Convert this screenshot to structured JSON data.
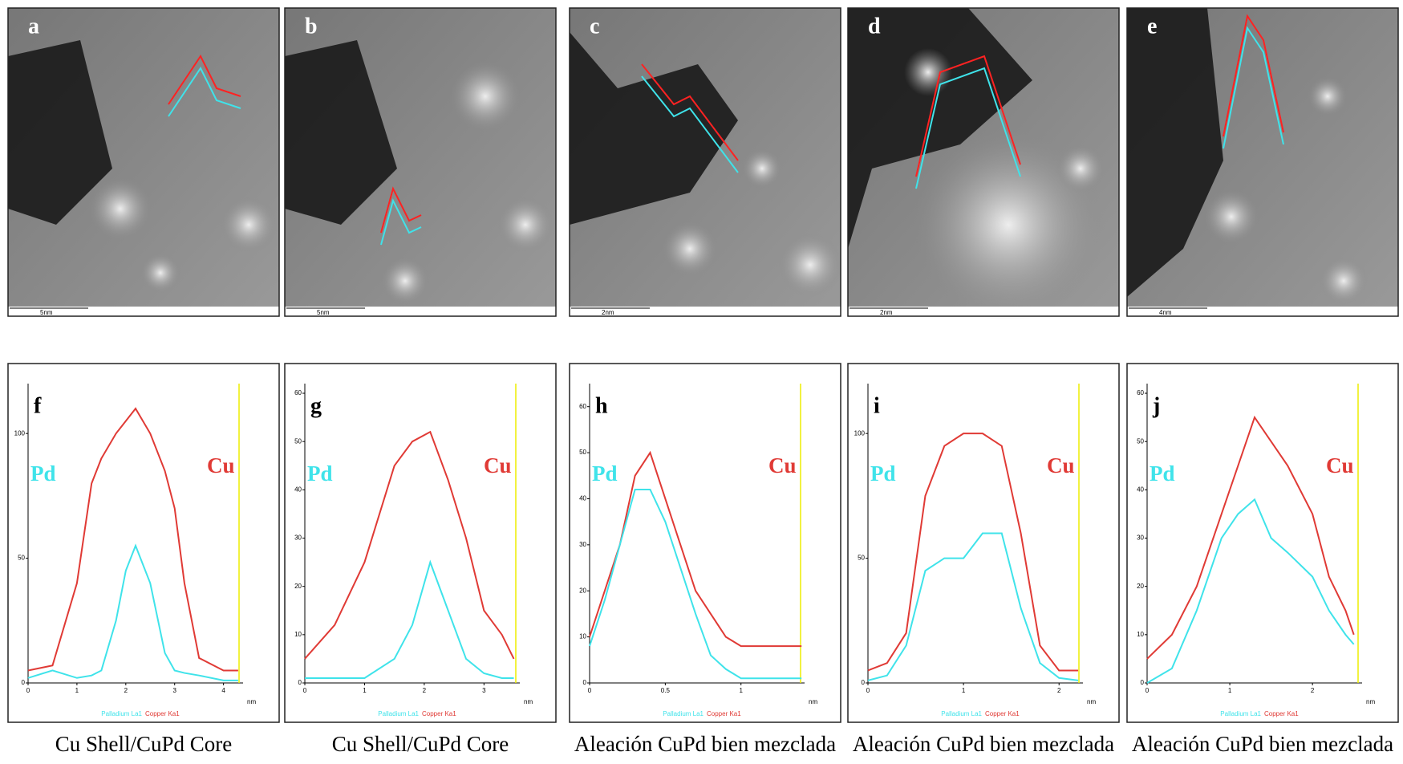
{
  "image_panels": [
    {
      "label": "a",
      "scale_bar": "5nm"
    },
    {
      "label": "b",
      "scale_bar": "5nm"
    },
    {
      "label": "c",
      "scale_bar": "2nm"
    },
    {
      "label": "d",
      "scale_bar": "2nm"
    },
    {
      "label": "e",
      "scale_bar": "4nm"
    }
  ],
  "chart_data": [
    {
      "type": "line",
      "label": "f",
      "caption": "Cu Shell/CuPd Core",
      "xlabel": "nm",
      "detector_labels": [
        "Palladium La1",
        "Copper Ka1"
      ],
      "x": [
        0,
        0.5,
        1,
        1.3,
        1.5,
        1.8,
        2,
        2.2,
        2.5,
        2.8,
        3,
        3.2,
        3.5,
        4,
        4.3
      ],
      "xlim": [
        0,
        4.4
      ],
      "xticks": [
        0,
        1,
        2,
        3,
        4
      ],
      "ylim": [
        0,
        120
      ],
      "yticks": [
        0,
        50,
        100
      ],
      "series": [
        {
          "name": "Pd",
          "color": "#3fe3ea",
          "values": [
            2,
            5,
            2,
            3,
            5,
            25,
            45,
            55,
            40,
            12,
            5,
            4,
            3,
            1,
            1
          ]
        },
        {
          "name": "Cu",
          "color": "#e03a35",
          "values": [
            5,
            7,
            40,
            80,
            90,
            100,
            105,
            110,
            100,
            85,
            70,
            40,
            10,
            5,
            5
          ]
        }
      ]
    },
    {
      "type": "line",
      "label": "g",
      "caption": "Cu Shell/CuPd Core",
      "xlabel": "nm",
      "detector_labels": [
        "Palladium La1",
        "Copper Ka1"
      ],
      "x": [
        0,
        0.5,
        1,
        1.5,
        1.8,
        2.1,
        2.4,
        2.7,
        3,
        3.3,
        3.5
      ],
      "xlim": [
        0,
        3.6
      ],
      "xticks": [
        0,
        1,
        2,
        3
      ],
      "ylim": [
        0,
        62
      ],
      "yticks": [
        0,
        10,
        20,
        30,
        40,
        50,
        60
      ],
      "series": [
        {
          "name": "Pd",
          "color": "#3fe3ea",
          "values": [
            1,
            1,
            1,
            5,
            12,
            25,
            15,
            5,
            2,
            1,
            1
          ]
        },
        {
          "name": "Cu",
          "color": "#e03a35",
          "values": [
            5,
            12,
            25,
            45,
            50,
            52,
            42,
            30,
            15,
            10,
            5
          ]
        }
      ]
    },
    {
      "type": "line",
      "label": "h",
      "caption": "Aleación CuPd bien mezclada",
      "xlabel": "nm",
      "detector_labels": [
        "Palladium La1",
        "Copper Ka1"
      ],
      "x": [
        0,
        0.1,
        0.2,
        0.3,
        0.4,
        0.5,
        0.6,
        0.7,
        0.8,
        0.9,
        1.0,
        1.2,
        1.4
      ],
      "xlim": [
        0,
        1.42
      ],
      "xticks": [
        0,
        0.5,
        1
      ],
      "ylim": [
        0,
        65
      ],
      "yticks": [
        0,
        10,
        20,
        30,
        40,
        50,
        60
      ],
      "series": [
        {
          "name": "Pd",
          "color": "#3fe3ea",
          "values": [
            8,
            18,
            30,
            42,
            42,
            35,
            25,
            15,
            6,
            3,
            1,
            1,
            1
          ]
        },
        {
          "name": "Cu",
          "color": "#e03a35",
          "values": [
            10,
            20,
            30,
            45,
            50,
            40,
            30,
            20,
            15,
            10,
            8,
            8,
            8
          ]
        }
      ]
    },
    {
      "type": "line",
      "label": "i",
      "caption": "Aleación CuPd bien mezclada",
      "xlabel": "nm",
      "detector_labels": [
        "Palladium La1",
        "Copper Ka1"
      ],
      "x": [
        0,
        0.2,
        0.4,
        0.6,
        0.8,
        1,
        1.2,
        1.4,
        1.6,
        1.8,
        2,
        2.2
      ],
      "xlim": [
        0,
        2.25
      ],
      "xticks": [
        0,
        1,
        2
      ],
      "ylim": [
        0,
        120
      ],
      "yticks": [
        0,
        50,
        100
      ],
      "series": [
        {
          "name": "Pd",
          "color": "#3fe3ea",
          "values": [
            1,
            3,
            15,
            45,
            50,
            50,
            60,
            60,
            30,
            8,
            2,
            1
          ]
        },
        {
          "name": "Cu",
          "color": "#e03a35",
          "values": [
            5,
            8,
            20,
            75,
            95,
            100,
            100,
            95,
            60,
            15,
            5,
            5
          ]
        }
      ]
    },
    {
      "type": "line",
      "label": "j",
      "caption": "Aleación CuPd bien mezclada",
      "xlabel": "nm",
      "detector_labels": [
        "Palladium La1",
        "Copper Ka1"
      ],
      "x": [
        0,
        0.3,
        0.6,
        0.9,
        1.1,
        1.3,
        1.5,
        1.7,
        2,
        2.2,
        2.4,
        2.5
      ],
      "xlim": [
        0,
        2.6
      ],
      "xticks": [
        0,
        1,
        2
      ],
      "ylim": [
        0,
        62
      ],
      "yticks": [
        0,
        10,
        20,
        30,
        40,
        50,
        60
      ],
      "series": [
        {
          "name": "Pd",
          "color": "#3fe3ea",
          "values": [
            0,
            3,
            15,
            30,
            35,
            38,
            30,
            27,
            22,
            15,
            10,
            8
          ]
        },
        {
          "name": "Cu",
          "color": "#e03a35",
          "values": [
            5,
            10,
            20,
            35,
            45,
            55,
            50,
            45,
            35,
            22,
            15,
            10
          ]
        }
      ]
    }
  ]
}
